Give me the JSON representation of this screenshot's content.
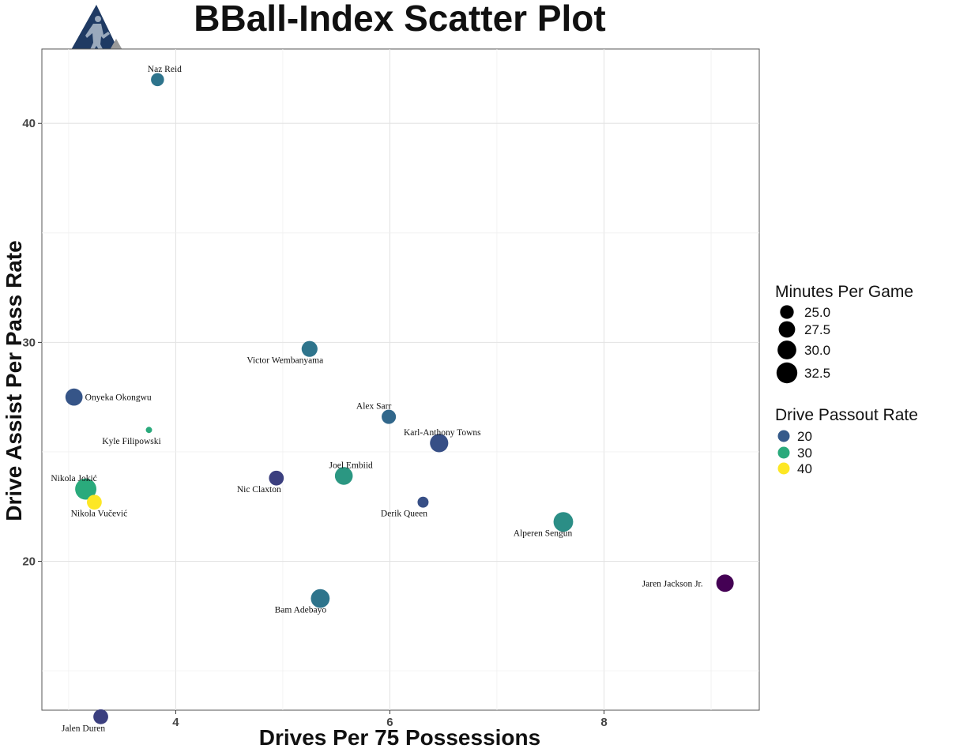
{
  "chart_data": {
    "type": "scatter",
    "title": "BBall-Index Scatter Plot",
    "xlabel": "Drives Per 75 Possessions",
    "ylabel": "Drive Assist Per Pass Rate",
    "xlim": [
      2.75,
      9.45
    ],
    "ylim": [
      13.2,
      43.4
    ],
    "xticks": [
      4,
      6,
      8
    ],
    "xtick_labels": [
      "4",
      "6",
      "8"
    ],
    "yticks": [
      20,
      30,
      40
    ],
    "ytick_labels": [
      "20",
      "30",
      "40"
    ],
    "grid": true,
    "points": [
      {
        "label": "Naz Reid",
        "x": 3.83,
        "y": 42.0,
        "minutes": 24.5,
        "passout": 24
      },
      {
        "label": "Victor Wembanyama",
        "x": 5.25,
        "y": 29.7,
        "minutes": 27.0,
        "passout": 24
      },
      {
        "label": "Onyeka Okongwu",
        "x": 3.05,
        "y": 27.5,
        "minutes": 28.3,
        "passout": 19
      },
      {
        "label": "Alex Sarr",
        "x": 5.99,
        "y": 26.6,
        "minutes": 25.5,
        "passout": 22
      },
      {
        "label": "Kyle Filipowski",
        "x": 3.75,
        "y": 26.0,
        "minutes": 20.5,
        "passout": 30
      },
      {
        "label": "Karl-Anthony Towns",
        "x": 6.46,
        "y": 25.4,
        "minutes": 29.5,
        "passout": 18
      },
      {
        "label": "Joel Embiid",
        "x": 5.57,
        "y": 23.9,
        "minutes": 29.0,
        "passout": 28
      },
      {
        "label": "Nic Claxton",
        "x": 4.94,
        "y": 23.8,
        "minutes": 26.0,
        "passout": 15
      },
      {
        "label": "Nikola Jokić",
        "x": 3.16,
        "y": 23.3,
        "minutes": 33.0,
        "passout": 30
      },
      {
        "label": "Nikola Vučević",
        "x": 3.24,
        "y": 22.7,
        "minutes": 26.0,
        "passout": 41
      },
      {
        "label": "Derik Queen",
        "x": 6.31,
        "y": 22.7,
        "minutes": 23.0,
        "passout": 18
      },
      {
        "label": "Alperen Sengun",
        "x": 7.62,
        "y": 21.8,
        "minutes": 31.0,
        "passout": 27
      },
      {
        "label": "Jaren Jackson Jr.",
        "x": 9.13,
        "y": 19.0,
        "minutes": 28.5,
        "passout": 5
      },
      {
        "label": "Bam Adebayo",
        "x": 5.35,
        "y": 18.3,
        "minutes": 30.0,
        "passout": 24
      },
      {
        "label": "Jalen Duren",
        "x": 3.3,
        "y": 12.9,
        "minutes": 26.0,
        "passout": 15
      }
    ],
    "legend": {
      "placement": "right",
      "size": {
        "title": "Minutes Per Game",
        "entries": [
          "25.0",
          "27.5",
          "30.0",
          "32.5"
        ],
        "values": [
          25.0,
          27.5,
          30.0,
          32.5
        ]
      },
      "color": {
        "title": "Drive Passout Rate",
        "entries": [
          "20",
          "30",
          "40"
        ],
        "values": [
          20,
          30,
          40
        ]
      }
    },
    "colors": {
      "passout_5": "#440154",
      "passout_15": "#3b3f7f",
      "passout_20": "#355a8a",
      "passout_25": "#2c7b8c",
      "passout_30": "#2aaa7c",
      "passout_40": "#fde725"
    },
    "logo": "bball-index-logo-icon"
  }
}
